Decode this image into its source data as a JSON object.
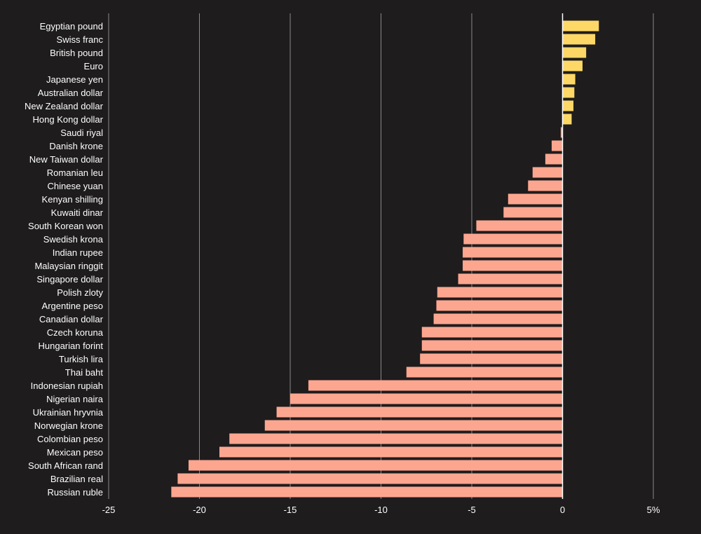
{
  "chart_data": {
    "type": "bar",
    "orientation": "horizontal",
    "title": "",
    "xlabel": "",
    "ylabel": "",
    "xlim": [
      -25,
      5
    ],
    "grid": true,
    "x_ticks": [
      {
        "value": -25,
        "label": "-25"
      },
      {
        "value": -20,
        "label": "-20"
      },
      {
        "value": -15,
        "label": "-15"
      },
      {
        "value": -10,
        "label": "-10"
      },
      {
        "value": -5,
        "label": "-5"
      },
      {
        "value": 0,
        "label": "0"
      },
      {
        "value": 5,
        "label": "5%"
      }
    ],
    "colors": {
      "background": "#1e1c1d",
      "positive": "#fdd867",
      "negative": "#fca690",
      "grid": "#8a8a8a",
      "zero_line": "#ffffff",
      "text": "#ffffff"
    },
    "categories": [
      "Egyptian pound",
      "Swiss franc",
      "British pound",
      "Euro",
      "Japanese yen",
      "Australian dollar",
      "New Zealand dollar",
      "Hong Kong dollar",
      "Saudi riyal",
      "Danish krone",
      "New Taiwan dollar",
      "Romanian leu",
      "Chinese yuan",
      "Kenyan shilling",
      "Kuwaiti dinar",
      "South Korean won",
      "Swedish krona",
      "Indian rupee",
      "Malaysian ringgit",
      "Singapore dollar",
      "Polish zloty",
      "Argentine peso",
      "Canadian dollar",
      "Czech koruna",
      "Hungarian forint",
      "Turkish lira",
      "Thai baht",
      "Indonesian rupiah",
      "Nigerian naira",
      "Ukrainian hryvnia",
      "Norwegian krone",
      "Colombian peso",
      "Mexican peso",
      "South African rand",
      "Brazilian real",
      "Russian ruble"
    ],
    "values": [
      2.0,
      1.8,
      1.3,
      1.1,
      0.7,
      0.65,
      0.6,
      0.5,
      -0.1,
      -0.6,
      -0.95,
      -1.65,
      -1.9,
      -3.0,
      -3.25,
      -4.75,
      -5.45,
      -5.5,
      -5.5,
      -5.75,
      -6.9,
      -6.95,
      -7.1,
      -7.75,
      -7.75,
      -7.85,
      -8.6,
      -14.0,
      -15.0,
      -15.75,
      -16.4,
      -18.35,
      -18.9,
      -20.6,
      -21.2,
      -21.55
    ]
  }
}
